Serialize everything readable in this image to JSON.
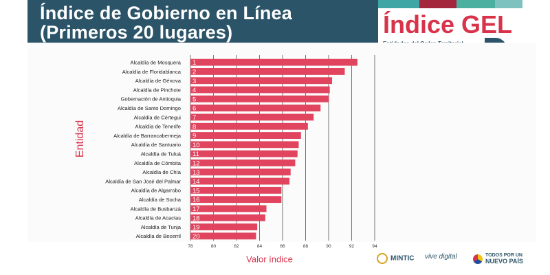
{
  "header": {
    "title_line1": "Índice de Gobierno en Línea",
    "title_line2": "(Primeros 20 lugares)",
    "brand": "Índice GEL",
    "brand_sub": "Entidades del Orden Territorial"
  },
  "colors": {
    "bar": "#e0445e",
    "title_bg": "#2b5468",
    "accent": "#d8334a",
    "strip": [
      "#3fa6a6",
      "#a3263c",
      "#4bb0a0",
      "#7ec2bf"
    ]
  },
  "chart_data": {
    "type": "bar",
    "orientation": "horizontal",
    "title": "Índice de Gobierno en Línea (Primeros 20 lugares)",
    "xlabel": "Valor índice",
    "ylabel": "Entidad",
    "xlim": [
      78,
      94
    ],
    "xticks": [
      "78",
      "80",
      "82",
      "84",
      "86",
      "88",
      "90",
      "92",
      "94"
    ],
    "grid": true,
    "categories": [
      "Alcaldía de Mosquera",
      "Alcaldía de Floridablanca",
      "Alcaldía de Génova",
      "Alcaldía de Pinchote",
      "Gobernación de Antioquia",
      "Alcaldía de Santo Domingo",
      "Alcaldía de Cértegui",
      "Alcaldía de Tenerife",
      "Alcaldía de Barrancabermeja",
      "Alcaldía de Santuario",
      "Alcaldía de Tuluá",
      "Alcaldía de Cómbita",
      "Alcaldía de Chía",
      "Alcaldía de San José del Palmar",
      "Alcaldía de Algarrobo",
      "Alcaldía de Socha",
      "Alcaldía de Busbanzá",
      "Alcaldía de Acacías",
      "Alcaldía de Tunja",
      "Alcaldía de Becerril"
    ],
    "ranks": [
      "1",
      "2",
      "3",
      "4",
      "5",
      "6",
      "7",
      "8",
      "9",
      "10",
      "11",
      "12",
      "13",
      "14",
      "15",
      "16",
      "17",
      "18",
      "19",
      "20"
    ],
    "values": [
      92.5,
      91.4,
      90.3,
      90.1,
      90.0,
      89.3,
      88.7,
      88.2,
      87.6,
      87.4,
      87.3,
      87.1,
      86.7,
      86.6,
      85.9,
      85.9,
      84.6,
      84.5,
      83.8,
      83.7
    ]
  },
  "footer": {
    "logo1": "MINTIC",
    "logo2": "vive digital",
    "logo3_line1": "TODOS POR UN",
    "logo3_line2": "NUEVO PAÍS"
  }
}
